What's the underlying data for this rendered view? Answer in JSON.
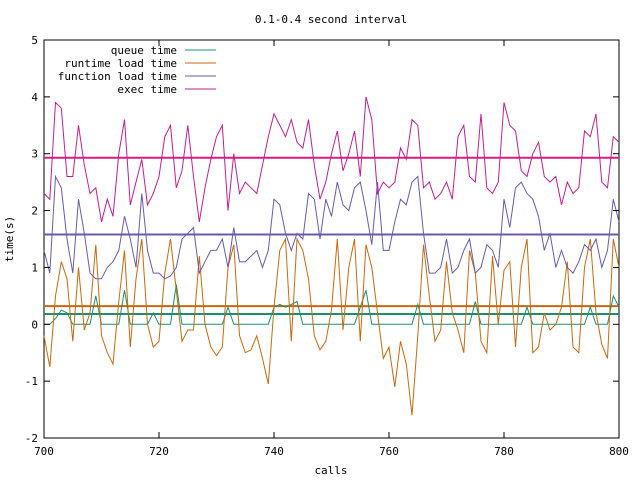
{
  "chart_data": {
    "type": "line",
    "title": "0.1-0.4 second interval",
    "xlabel": "calls",
    "ylabel": "time(s)",
    "xlim": [
      700,
      800
    ],
    "ylim": [
      -2,
      5
    ],
    "x_ticks": [
      700,
      720,
      740,
      760,
      780,
      800
    ],
    "y_ticks": [
      -2,
      -1,
      0,
      1,
      2,
      3,
      4,
      5
    ],
    "grid": false,
    "legend_position": "top-left",
    "x": [
      700,
      701,
      702,
      703,
      704,
      705,
      706,
      707,
      708,
      709,
      710,
      711,
      712,
      713,
      714,
      715,
      716,
      717,
      718,
      719,
      720,
      721,
      722,
      723,
      724,
      725,
      726,
      727,
      728,
      729,
      730,
      731,
      732,
      733,
      734,
      735,
      736,
      737,
      738,
      739,
      740,
      741,
      742,
      743,
      744,
      745,
      746,
      747,
      748,
      749,
      750,
      751,
      752,
      753,
      754,
      755,
      756,
      757,
      758,
      759,
      760,
      761,
      762,
      763,
      764,
      765,
      766,
      767,
      768,
      769,
      770,
      771,
      772,
      773,
      774,
      775,
      776,
      777,
      778,
      779,
      780,
      781,
      782,
      783,
      784,
      785,
      786,
      787,
      788,
      789,
      790,
      791,
      792,
      793,
      794,
      795,
      796,
      797,
      798,
      799,
      800
    ],
    "series": [
      {
        "name": "queue time",
        "color": "#1a8f6f",
        "values": [
          0.0,
          0.0,
          0.1,
          0.25,
          0.2,
          0.0,
          0.0,
          0.0,
          0.0,
          0.5,
          0.0,
          0.0,
          0.0,
          0.0,
          0.6,
          0.0,
          0.0,
          0.0,
          0.0,
          0.2,
          0.0,
          0.0,
          0.0,
          0.7,
          0.0,
          0.0,
          0.0,
          0.0,
          0.0,
          0.0,
          0.0,
          0.0,
          0.3,
          0.0,
          0.0,
          0.0,
          0.0,
          0.0,
          0.0,
          0.0,
          0.3,
          0.35,
          0.3,
          0.35,
          0.4,
          0.0,
          0.0,
          0.0,
          0.0,
          0.0,
          0.0,
          0.0,
          0.0,
          0.0,
          0.0,
          0.3,
          0.6,
          0.0,
          0.0,
          0.0,
          0.0,
          0.0,
          0.0,
          0.0,
          0.0,
          0.35,
          0.0,
          0.0,
          0.0,
          0.0,
          0.0,
          0.0,
          0.0,
          0.0,
          0.0,
          0.4,
          0.0,
          0.0,
          0.0,
          0.0,
          0.0,
          0.0,
          0.0,
          0.0,
          0.3,
          0.0,
          0.0,
          0.0,
          0.0,
          0.0,
          0.0,
          0.0,
          0.0,
          0.0,
          0.0,
          0.3,
          0.0,
          0.0,
          0.0,
          0.5,
          0.3
        ]
      },
      {
        "name": "runtime load time",
        "color": "#c56a10",
        "values": [
          -0.2,
          -0.75,
          0.5,
          1.1,
          0.8,
          -0.3,
          1.0,
          -0.1,
          0.2,
          1.4,
          -0.2,
          -0.5,
          -0.7,
          0.4,
          1.3,
          -0.4,
          0.8,
          1.5,
          0.0,
          -0.4,
          -0.3,
          0.9,
          1.5,
          0.6,
          -0.3,
          -0.1,
          -0.1,
          1.2,
          0.0,
          -0.4,
          -0.55,
          -0.4,
          1.0,
          1.4,
          -0.2,
          -0.5,
          -0.45,
          -0.2,
          -0.6,
          -1.05,
          0.3,
          1.3,
          1.5,
          -0.3,
          1.5,
          1.3,
          0.8,
          -0.2,
          -0.45,
          -0.3,
          0.25,
          1.5,
          -0.1,
          1.0,
          1.5,
          -0.3,
          1.4,
          1.0,
          0.2,
          -0.6,
          -0.4,
          -1.1,
          -0.3,
          -0.7,
          -1.6,
          -0.2,
          1.4,
          0.5,
          -0.3,
          -0.1,
          1.1,
          0.2,
          -0.1,
          -0.5,
          1.3,
          0.9,
          -0.3,
          -0.5,
          1.2,
          0.0,
          0.95,
          1.1,
          -0.4,
          1.0,
          1.5,
          -0.5,
          -0.4,
          0.2,
          -0.1,
          0.0,
          0.3,
          1.1,
          -0.4,
          -0.5,
          1.0,
          1.5,
          0.2,
          -0.35,
          -0.6,
          1.5,
          1.0
        ]
      },
      {
        "name": "function load time",
        "color": "#6a5aaa",
        "values": [
          1.3,
          0.9,
          2.6,
          2.4,
          1.5,
          0.9,
          2.2,
          1.6,
          0.9,
          0.8,
          0.8,
          1.0,
          1.1,
          1.3,
          1.9,
          1.5,
          1.0,
          2.3,
          1.3,
          0.9,
          0.9,
          0.8,
          0.85,
          1.0,
          1.5,
          1.6,
          1.7,
          0.9,
          1.1,
          1.3,
          1.3,
          1.5,
          1.0,
          1.7,
          1.1,
          1.1,
          1.2,
          1.3,
          1.0,
          1.3,
          2.2,
          2.1,
          1.6,
          1.3,
          1.6,
          1.5,
          2.3,
          2.2,
          1.5,
          2.2,
          1.9,
          2.5,
          2.1,
          2.0,
          2.4,
          2.5,
          2.0,
          1.4,
          2.5,
          1.3,
          1.3,
          1.8,
          2.2,
          2.1,
          2.5,
          2.6,
          1.6,
          0.9,
          0.9,
          1.0,
          1.5,
          0.9,
          1.0,
          1.3,
          1.5,
          0.9,
          1.0,
          1.4,
          1.3,
          1.0,
          2.2,
          1.7,
          2.4,
          2.5,
          2.3,
          2.2,
          1.9,
          1.3,
          1.6,
          1.0,
          1.3,
          1.0,
          0.9,
          1.1,
          1.4,
          1.3,
          1.5,
          1.0,
          1.3,
          2.2,
          1.8
        ]
      },
      {
        "name": "exec time",
        "color": "#c0208f",
        "values": [
          2.3,
          2.2,
          3.9,
          3.8,
          2.6,
          2.6,
          3.5,
          2.8,
          2.3,
          2.4,
          1.8,
          2.2,
          1.9,
          3.0,
          3.6,
          2.1,
          2.5,
          2.9,
          2.1,
          2.3,
          2.6,
          3.3,
          3.5,
          2.4,
          2.7,
          3.5,
          2.6,
          1.8,
          2.4,
          2.9,
          3.3,
          3.5,
          2.0,
          3.0,
          2.3,
          2.5,
          2.4,
          2.3,
          2.8,
          3.3,
          3.7,
          3.5,
          3.3,
          3.6,
          3.2,
          3.1,
          3.6,
          2.8,
          2.2,
          2.5,
          3.0,
          3.4,
          2.7,
          3.0,
          3.4,
          2.6,
          4.0,
          3.6,
          2.3,
          2.5,
          2.4,
          2.5,
          3.1,
          2.9,
          3.6,
          3.5,
          2.4,
          2.5,
          2.2,
          2.3,
          2.5,
          2.2,
          3.3,
          3.5,
          2.6,
          2.5,
          3.7,
          2.4,
          2.3,
          2.5,
          3.9,
          3.5,
          3.4,
          2.7,
          2.6,
          3.0,
          3.2,
          2.6,
          2.5,
          2.6,
          2.1,
          2.5,
          2.3,
          2.4,
          3.4,
          3.3,
          3.7,
          2.5,
          2.4,
          3.3,
          3.2
        ]
      }
    ],
    "reference_lines": [
      {
        "value": 0.18,
        "color": "#1a8f6f"
      },
      {
        "value": 0.32,
        "color": "#c56a10"
      },
      {
        "value": 1.58,
        "color": "#6a5aaa"
      },
      {
        "value": 2.93,
        "color": "#d81b85"
      }
    ]
  }
}
